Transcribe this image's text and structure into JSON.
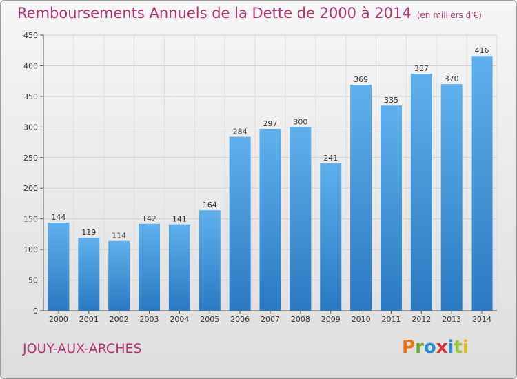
{
  "header": {
    "title": "Remboursements Annuels de la Dette de 2000 à 2014",
    "unit": "(en milliers d'€)"
  },
  "footer": {
    "commune": "JOUY-AUX-ARCHES",
    "logo_text": "Proxiti",
    "logo_letter_colors": [
      "#e8731a",
      "#6fae2f",
      "#2a8ccf",
      "#d6343b",
      "#2a8ccf",
      "#9ac43a",
      "#e8b51a"
    ]
  },
  "chart_data": {
    "type": "bar",
    "title": "Remboursements Annuels de la Dette de 2000 à 2014",
    "subtitle": "(en milliers d'€)",
    "categories": [
      "2000",
      "2001",
      "2002",
      "2003",
      "2004",
      "2005",
      "2006",
      "2007",
      "2008",
      "2009",
      "2010",
      "2011",
      "2012",
      "2013",
      "2014"
    ],
    "values": [
      144,
      119,
      114,
      142,
      141,
      164,
      284,
      297,
      300,
      241,
      369,
      335,
      387,
      370,
      416
    ],
    "ylim": [
      0,
      450
    ],
    "yticks": [
      0,
      50,
      100,
      150,
      200,
      250,
      300,
      350,
      400,
      450
    ],
    "grid": true,
    "bar_color": "#3f97dd",
    "data_labels": true
  }
}
